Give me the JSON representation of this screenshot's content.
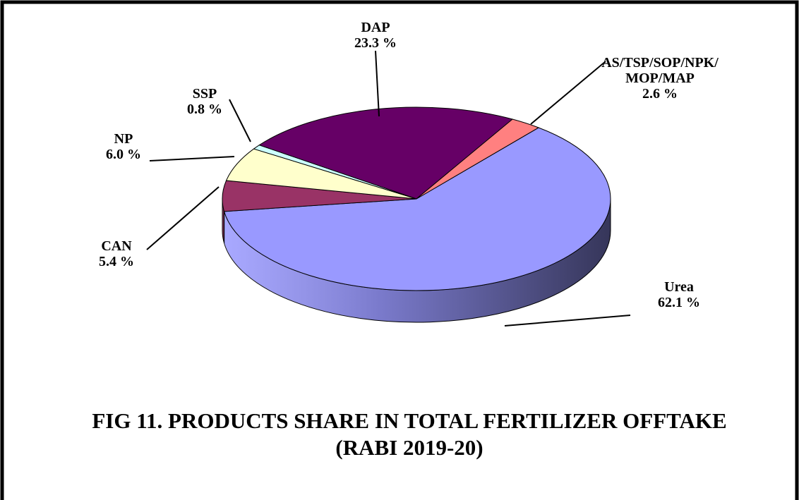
{
  "chart_data": {
    "type": "pie3d",
    "title": "FIG 11.  PRODUCTS SHARE IN TOTAL FERTILIZER OFFTAKE (RABI 2019-20)",
    "categories": [
      "Urea",
      "CAN",
      "NP",
      "SSP",
      "DAP",
      "AS/TSP/SOP/NPK/\nMOP/MAP"
    ],
    "values": [
      62.1,
      5.4,
      6.0,
      0.8,
      23.3,
      2.6
    ],
    "value_labels": [
      "62.1 %",
      "5.4 %",
      "6.0 %",
      "0.8 %",
      "23.3 %",
      "2.6 %"
    ],
    "colors": [
      "#9999ff",
      "#993366",
      "#ffffcc",
      "#ccffff",
      "#660066",
      "#ff8080"
    ]
  }
}
